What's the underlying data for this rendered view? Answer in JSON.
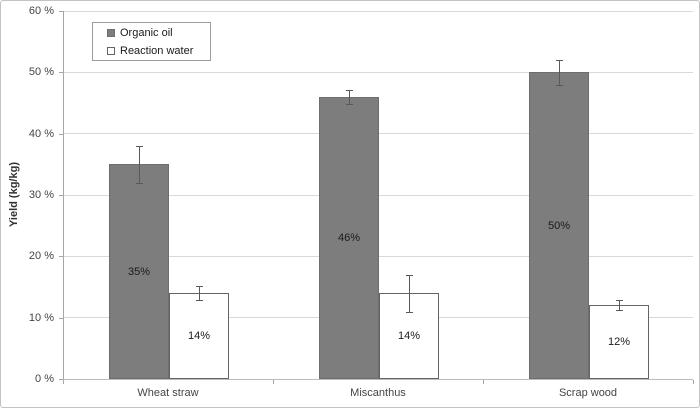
{
  "chart_data": {
    "type": "bar",
    "title": "",
    "xlabel": "",
    "ylabel": "Yield (kg/kg)",
    "categories": [
      "Wheat straw",
      "Miscanthus",
      "Scrap wood"
    ],
    "series": [
      {
        "name": "Organic oil",
        "fill": "#7d7d7d",
        "border": "#6e6e6e",
        "values": [
          35,
          46,
          50
        ],
        "errors": [
          3,
          1.2,
          2
        ],
        "bar_labels": [
          "35%",
          "46%",
          "50%"
        ]
      },
      {
        "name": "Reaction water",
        "fill": "#ffffff",
        "border": "#646464",
        "values": [
          14,
          14,
          12
        ],
        "errors": [
          1.2,
          3,
          0.8
        ],
        "bar_labels": [
          "14%",
          "14%",
          "12%"
        ]
      }
    ],
    "ylim": [
      0,
      60
    ],
    "ytick_labels": [
      "0 %",
      "10 %",
      "20 %",
      "30 %",
      "40 %",
      "50 %",
      "60 %"
    ],
    "grid": true,
    "error_bars": true,
    "legend_position": "top-left",
    "colors": {
      "gridline": "#d9d9d9",
      "axis": "#a6a6a6",
      "baseline": "#bcbcbc",
      "error_bar": "#595959",
      "tick_text": "#444444",
      "bar_label_text": "#1a1a1a",
      "frame": "#c3c3c3"
    }
  }
}
